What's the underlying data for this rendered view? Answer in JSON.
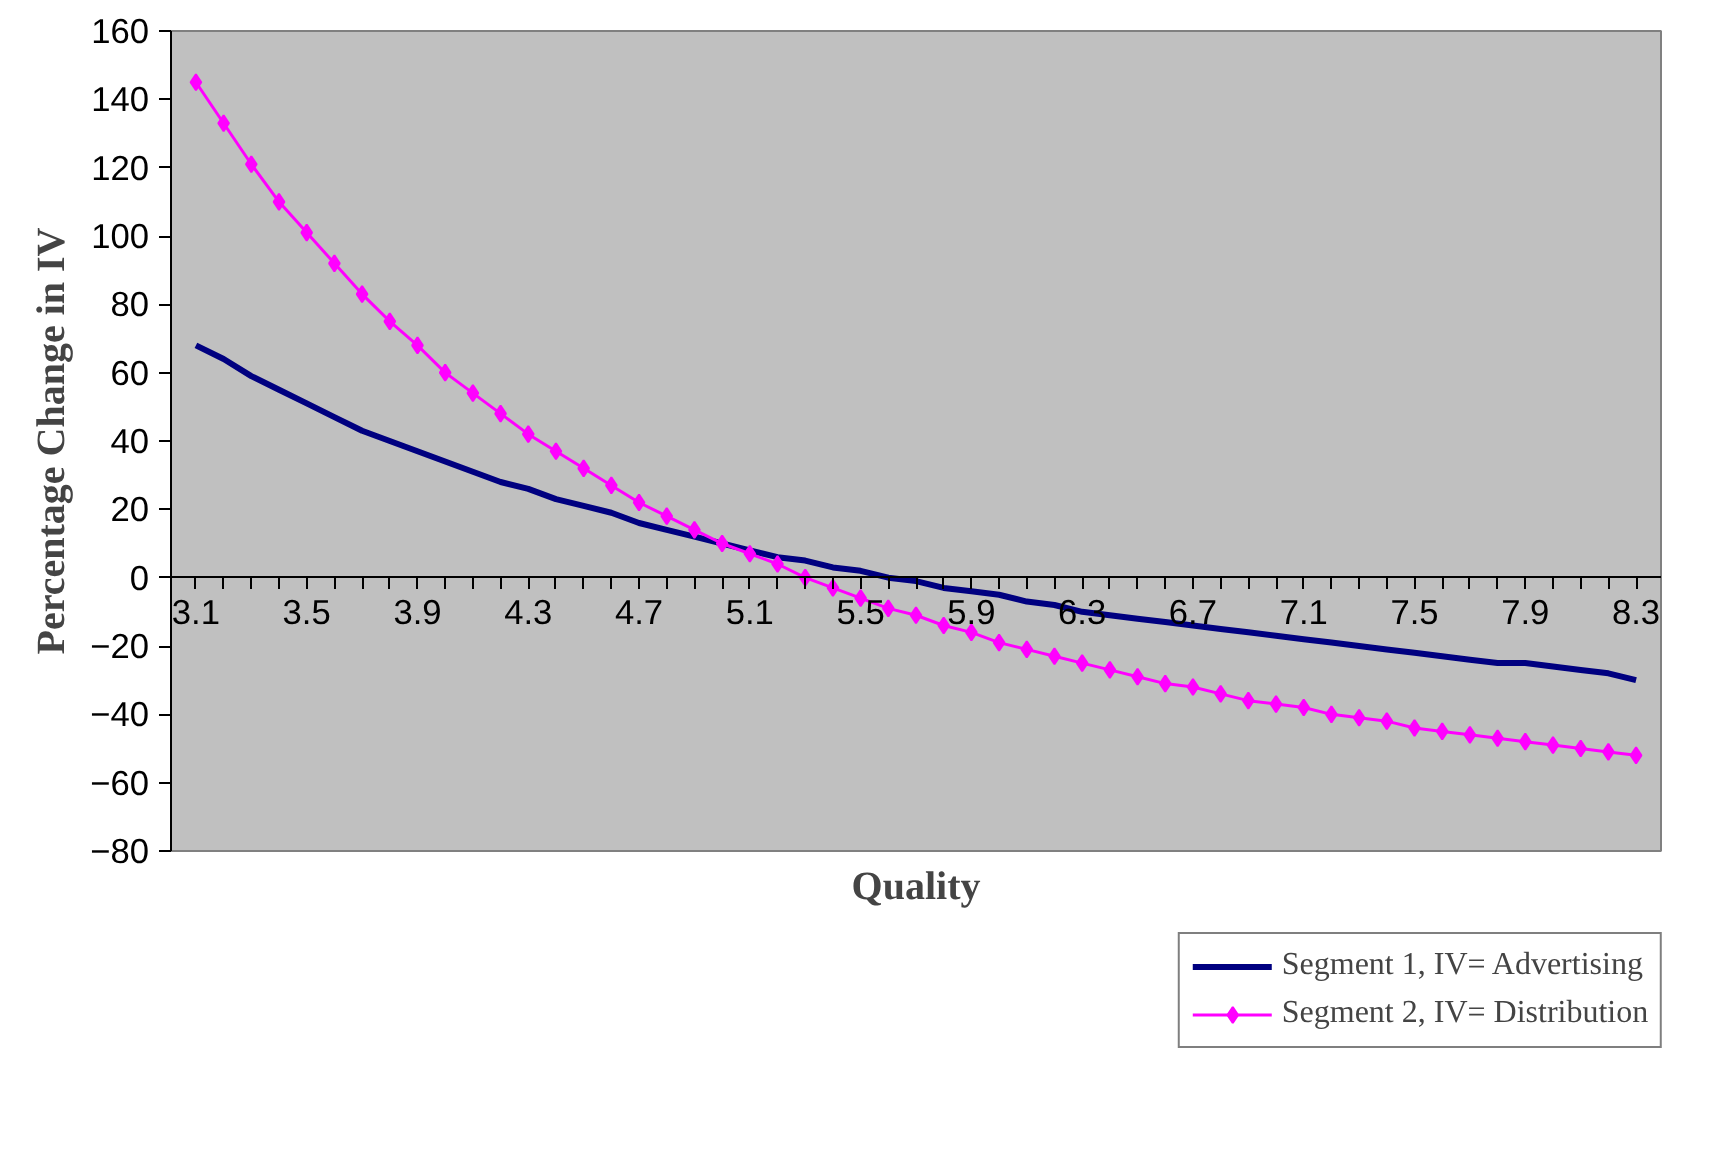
{
  "chart_data": {
    "type": "line",
    "xlabel": "Quality",
    "ylabel": "Percentage Change in IV",
    "categories": [
      "3.1",
      null,
      null,
      null,
      "3.5",
      null,
      null,
      null,
      "3.9",
      null,
      null,
      null,
      "4.3",
      null,
      null,
      null,
      "4.7",
      null,
      null,
      null,
      "5.1",
      null,
      null,
      null,
      "5.5",
      null,
      null,
      null,
      "5.9",
      null,
      null,
      null,
      "6.3",
      null,
      null,
      null,
      "6.7",
      null,
      null,
      null,
      "7.1",
      null,
      null,
      null,
      "7.5",
      null,
      null,
      null,
      "7.9",
      null,
      null,
      null,
      "8.3"
    ],
    "series": [
      {
        "name": "Segment 1, IV= Advertising",
        "color": "#000080",
        "marker": "none",
        "values": [
          68,
          64,
          59,
          55,
          51,
          47,
          43,
          40,
          37,
          34,
          31,
          28,
          26,
          23,
          21,
          19,
          16,
          14,
          12,
          10,
          8,
          6,
          5,
          3,
          2,
          0,
          -1,
          -3,
          -4,
          -5,
          -7,
          -8,
          -10,
          -11,
          -12,
          -13,
          -14,
          -15,
          -16,
          -17,
          -18,
          -19,
          -20,
          -21,
          -22,
          -23,
          -24,
          -25,
          -25,
          -26,
          -27,
          -28,
          -30
        ]
      },
      {
        "name": "Segment 2, IV= Distribution",
        "color": "#ff00ff",
        "marker": "diamond",
        "values": [
          145,
          133,
          121,
          110,
          101,
          92,
          83,
          75,
          68,
          60,
          54,
          48,
          42,
          37,
          32,
          27,
          22,
          18,
          14,
          10,
          7,
          4,
          0,
          -3,
          -6,
          -9,
          -11,
          -14,
          -16,
          -19,
          -21,
          -23,
          -25,
          -27,
          -29,
          -31,
          -32,
          -34,
          -36,
          -37,
          -38,
          -40,
          -41,
          -42,
          -44,
          -45,
          -46,
          -47,
          -48,
          -49,
          -50,
          -51,
          -52
        ]
      }
    ],
    "ylim": [
      -80,
      160
    ],
    "yticks": [
      -80,
      -60,
      -40,
      -20,
      0,
      20,
      40,
      60,
      80,
      100,
      120,
      140,
      160
    ],
    "grid": false,
    "legend": "bottom right"
  }
}
